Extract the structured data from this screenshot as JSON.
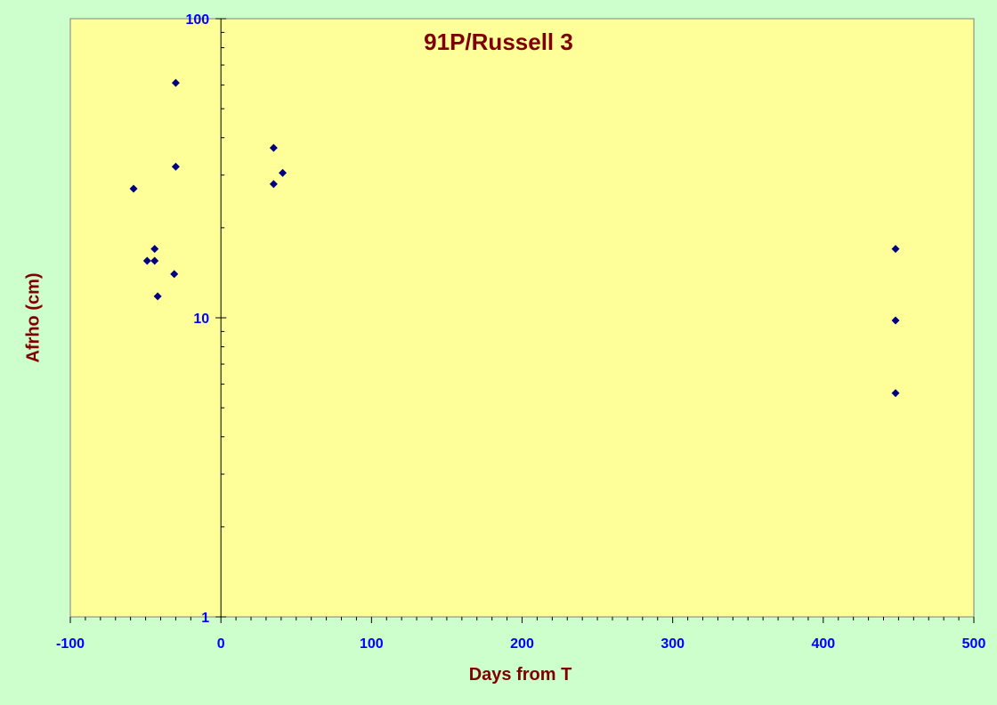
{
  "chart_data": {
    "type": "scatter",
    "title": "91P/Russell 3",
    "xlabel": "Days from T",
    "ylabel": "Afrho (cm)",
    "xlim": [
      -100,
      500
    ],
    "ylim": [
      1,
      100
    ],
    "y_scale": "log",
    "x_ticks": [
      -100,
      0,
      100,
      200,
      300,
      400,
      500
    ],
    "x_tick_labels": [
      "-100",
      "0",
      "100",
      "200",
      "300",
      "400",
      "500"
    ],
    "y_ticks": [
      1,
      10,
      100
    ],
    "y_tick_labels": [
      "1",
      "10",
      "100"
    ],
    "grid": false,
    "legend": "none",
    "series": [
      {
        "marker": "diamond",
        "points": [
          {
            "x": -58,
            "y": 27
          },
          {
            "x": -49,
            "y": 15.5
          },
          {
            "x": -44,
            "y": 17
          },
          {
            "x": -44,
            "y": 15.5
          },
          {
            "x": -42,
            "y": 11.8
          },
          {
            "x": -30,
            "y": 61
          },
          {
            "x": -30,
            "y": 32
          },
          {
            "x": -31,
            "y": 14
          },
          {
            "x": 35,
            "y": 37
          },
          {
            "x": 35,
            "y": 28
          },
          {
            "x": 41,
            "y": 30.5
          },
          {
            "x": 448,
            "y": 17
          },
          {
            "x": 448,
            "y": 9.8
          },
          {
            "x": 448,
            "y": 5.6
          }
        ]
      }
    ]
  },
  "colors": {
    "page_background": "#ccffcc",
    "plot_background": "#ffff99",
    "marker": "#000080",
    "title": "#800000",
    "axis_title": "#800000",
    "tick_label": "#0000ff",
    "axis_line": "#000000"
  }
}
